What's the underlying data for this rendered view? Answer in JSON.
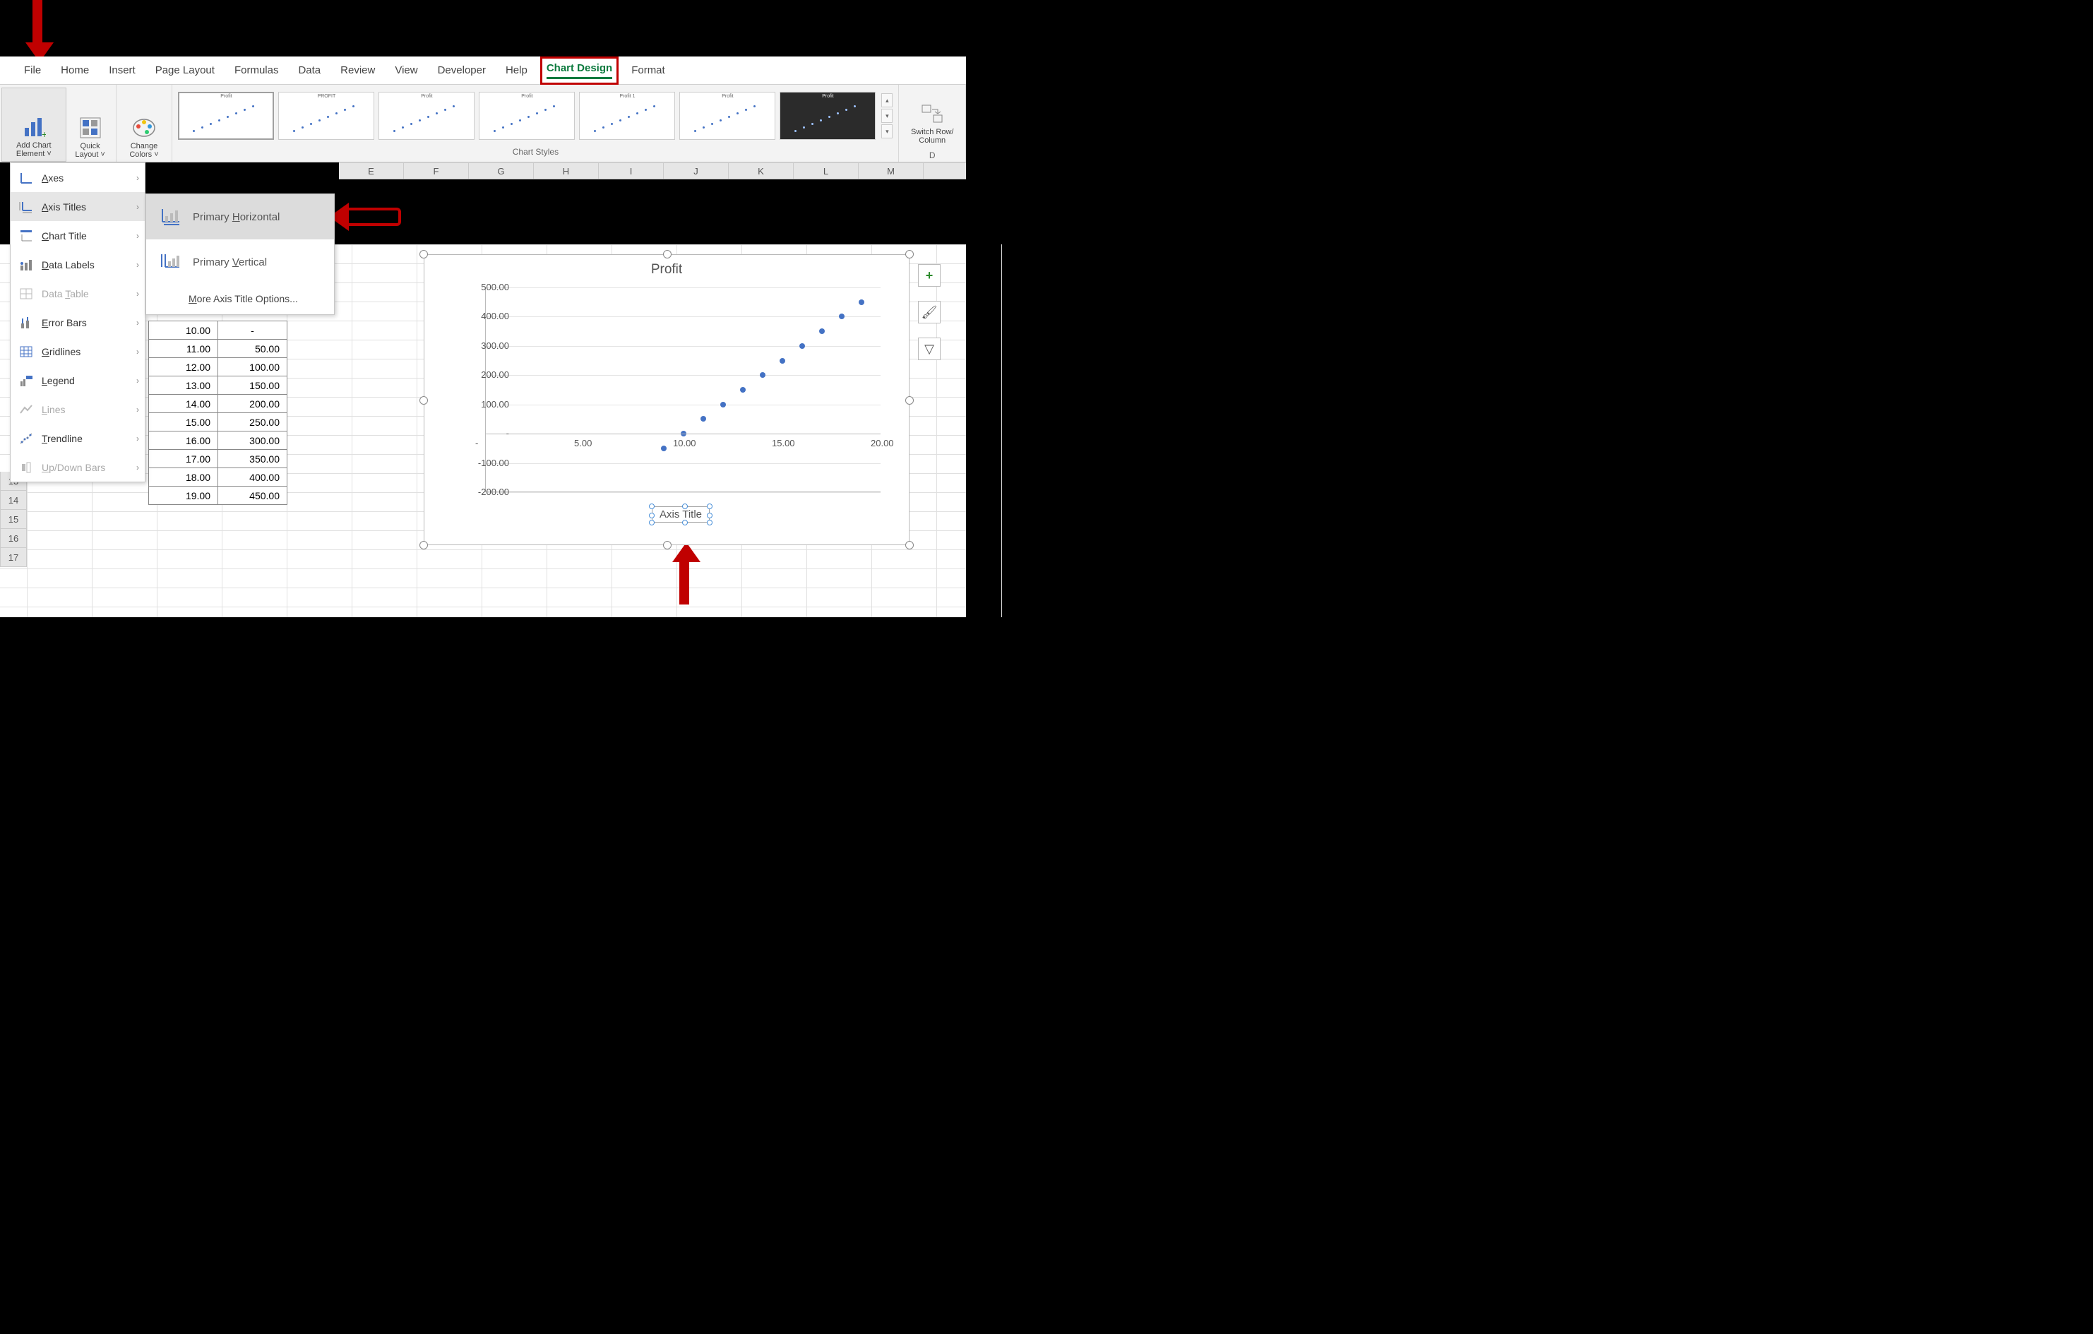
{
  "tabs": {
    "file": "File",
    "home": "Home",
    "insert": "Insert",
    "page_layout": "Page Layout",
    "formulas": "Formulas",
    "data": "Data",
    "review": "Review",
    "view": "View",
    "developer": "Developer",
    "help": "Help",
    "chart_design": "Chart Design",
    "format": "Format"
  },
  "ribbon": {
    "add_chart_element": "Add Chart\nElement",
    "quick_layout": "Quick\nLayout",
    "change_colors": "Change\nColors",
    "switch": "Switch Row/\nColumn",
    "chart_styles_label": "Chart Styles",
    "data_label": "D"
  },
  "style_thumbs_title": "Profit",
  "menu1": [
    {
      "label": "Axes",
      "disabled": false,
      "icon": "axes"
    },
    {
      "label": "Axis Titles",
      "disabled": false,
      "hover": true,
      "icon": "axis-titles"
    },
    {
      "label": "Chart Title",
      "disabled": false,
      "icon": "chart-title"
    },
    {
      "label": "Data Labels",
      "disabled": false,
      "icon": "data-labels"
    },
    {
      "label": "Data Table",
      "disabled": true,
      "icon": "data-table"
    },
    {
      "label": "Error Bars",
      "disabled": false,
      "icon": "error-bars"
    },
    {
      "label": "Gridlines",
      "disabled": false,
      "icon": "gridlines"
    },
    {
      "label": "Legend",
      "disabled": false,
      "icon": "legend"
    },
    {
      "label": "Lines",
      "disabled": true,
      "icon": "lines"
    },
    {
      "label": "Trendline",
      "disabled": false,
      "icon": "trendline"
    },
    {
      "label": "Up/Down Bars",
      "disabled": true,
      "icon": "updown"
    }
  ],
  "menu1_underline_idx": [
    0,
    0,
    0,
    0,
    5,
    0,
    0,
    0,
    0,
    0,
    0
  ],
  "menu2": {
    "primary_h": "Primary Horizontal",
    "primary_v": "Primary Vertical",
    "more": "More Axis Title Options...",
    "ph_u": 8,
    "pv_u": 8,
    "more_u": 0
  },
  "columns": [
    "E",
    "F",
    "G",
    "H",
    "I",
    "J",
    "K",
    "L",
    "M"
  ],
  "row_headers": [
    13,
    14,
    15,
    16,
    17
  ],
  "table_rows": [
    [
      "10.00",
      "-"
    ],
    [
      "11.00",
      "50.00"
    ],
    [
      "12.00",
      "100.00"
    ],
    [
      "13.00",
      "150.00"
    ],
    [
      "14.00",
      "200.00"
    ],
    [
      "15.00",
      "250.00"
    ],
    [
      "16.00",
      "300.00"
    ],
    [
      "17.00",
      "350.00"
    ],
    [
      "18.00",
      "400.00"
    ],
    [
      "19.00",
      "450.00"
    ]
  ],
  "chart": {
    "title": "Profit",
    "axis_title_placeholder": "Axis Title",
    "y_ticks": [
      500,
      400,
      300,
      200,
      100,
      0,
      -100,
      -200
    ],
    "y_tick_labels": [
      "500.00",
      "400.00",
      "300.00",
      "200.00",
      "100.00",
      "-",
      "-100.00",
      "-200.00"
    ],
    "x_ticks": [
      0,
      5,
      10,
      15,
      20
    ],
    "x_tick_labels": [
      "-",
      "5.00",
      "10.00",
      "15.00",
      "20.00"
    ],
    "ylim": [
      -200,
      500
    ],
    "xlim": [
      0,
      20
    ],
    "points": [
      {
        "x": 9,
        "y": -50
      },
      {
        "x": 10,
        "y": 0
      },
      {
        "x": 11,
        "y": 50
      },
      {
        "x": 12,
        "y": 100
      },
      {
        "x": 13,
        "y": 150
      },
      {
        "x": 14,
        "y": 200
      },
      {
        "x": 15,
        "y": 250
      },
      {
        "x": 16,
        "y": 300
      },
      {
        "x": 17,
        "y": 350
      },
      {
        "x": 18,
        "y": 400
      },
      {
        "x": 19,
        "y": 450
      }
    ],
    "point_color": "#4472c4",
    "grid_color": "#e4e4e4",
    "background": "#ffffff"
  },
  "colors": {
    "accent": "#0c7a3e",
    "annotation": "#c00000",
    "chart_point": "#4472c4"
  }
}
